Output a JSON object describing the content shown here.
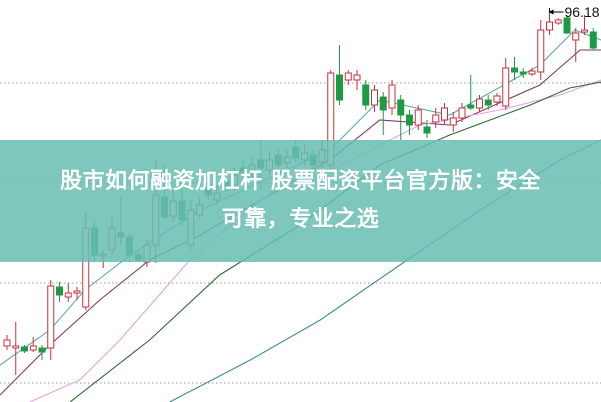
{
  "banner": {
    "title_line1": "股市如何融资加杠杆 股票配资平台官方版：安全",
    "title_line2": "可靠，专业之选"
  },
  "chart_data": {
    "type": "candlestick",
    "title": "",
    "xlabel": "",
    "ylabel": "",
    "grid": true,
    "gridlines": [
      88.68,
      78.68,
      68.68,
      58.68
    ],
    "ylim": [
      56.78,
      96.98
    ],
    "max_annotation": {
      "label": "96.18",
      "value": 96.18,
      "candle_index": 62
    },
    "colors": {
      "up": "#c8323c",
      "down": "#1f9a44",
      "grid": "#9a9a9a"
    },
    "candles": [
      [
        62.38,
        62.98,
        63.48,
        61.98
      ],
      [
        62.18,
        62.38,
        64.78,
        59.48
      ],
      [
        62.28,
        61.88,
        62.48,
        61.68
      ],
      [
        61.98,
        62.38,
        63.28,
        61.78
      ],
      [
        62.18,
        61.78,
        62.48,
        60.98
      ],
      [
        62.18,
        68.38,
        68.98,
        60.98
      ],
      [
        68.28,
        67.48,
        68.78,
        66.78
      ],
      [
        67.28,
        67.68,
        68.68,
        66.78
      ],
      [
        67.68,
        67.88,
        68.28,
        66.98
      ],
      [
        66.28,
        74.18,
        75.68,
        65.98
      ],
      [
        74.18,
        71.48,
        74.78,
        70.78
      ],
      [
        71.38,
        71.58,
        71.98,
        70.18
      ],
      [
        71.98,
        74.18,
        75.18,
        71.48
      ],
      [
        73.68,
        73.28,
        77.28,
        72.48
      ],
      [
        73.28,
        71.48,
        73.68,
        70.78
      ],
      [
        71.48,
        70.98,
        71.98,
        70.78
      ],
      [
        70.78,
        72.48,
        72.98,
        70.28
      ],
      [
        72.48,
        77.48,
        80.98,
        70.68
      ],
      [
        77.28,
        75.28,
        80.48,
        74.98
      ],
      [
        75.38,
        76.88,
        77.98,
        74.78
      ],
      [
        76.88,
        74.98,
        78.48,
        74.48
      ],
      [
        72.48,
        75.98,
        76.98,
        71.98
      ],
      [
        75.48,
        76.48,
        77.18,
        75.18
      ],
      [
        78.28,
        77.48,
        78.98,
        76.98
      ],
      [
        76.98,
        77.68,
        78.48,
        76.48
      ],
      [
        78.98,
        78.18,
        79.78,
        77.78
      ],
      [
        78.48,
        79.48,
        80.18,
        77.98
      ],
      [
        80.18,
        79.48,
        80.98,
        78.98
      ],
      [
        79.78,
        80.48,
        81.18,
        79.18
      ],
      [
        80.98,
        80.18,
        82.98,
        77.98
      ],
      [
        79.98,
        80.98,
        81.98,
        79.48
      ],
      [
        81.48,
        80.48,
        82.18,
        79.98
      ],
      [
        80.68,
        81.28,
        81.98,
        80.18
      ],
      [
        82.28,
        81.18,
        82.98,
        80.78
      ],
      [
        80.98,
        81.68,
        82.48,
        80.48
      ],
      [
        81.48,
        80.48,
        81.98,
        79.98
      ],
      [
        80.78,
        81.98,
        82.98,
        80.18
      ],
      [
        80.48,
        89.68,
        89.98,
        79.98
      ],
      [
        89.48,
        86.98,
        92.48,
        86.48
      ],
      [
        88.98,
        89.68,
        89.98,
        88.48
      ],
      [
        88.98,
        89.48,
        89.98,
        87.98
      ],
      [
        88.48,
        86.48,
        88.98,
        85.98
      ],
      [
        86.48,
        87.98,
        88.48,
        85.78
      ],
      [
        87.28,
        85.98,
        87.78,
        83.48
      ],
      [
        86.18,
        88.48,
        88.98,
        85.48
      ],
      [
        86.98,
        85.48,
        87.48,
        82.98
      ],
      [
        85.48,
        84.48,
        85.98,
        83.48
      ],
      [
        84.48,
        85.98,
        86.48,
        83.98
      ],
      [
        84.28,
        83.68,
        84.98,
        83.18
      ],
      [
        84.78,
        85.48,
        86.18,
        84.18
      ],
      [
        84.98,
        86.18,
        86.68,
        84.48
      ],
      [
        84.48,
        85.18,
        85.78,
        83.78
      ],
      [
        85.18,
        86.18,
        86.68,
        84.78
      ],
      [
        86.48,
        86.18,
        89.48,
        85.98
      ],
      [
        86.18,
        87.08,
        87.48,
        85.78
      ],
      [
        86.98,
        86.48,
        87.48,
        85.98
      ],
      [
        86.78,
        87.38,
        87.68,
        86.38
      ],
      [
        86.38,
        90.18,
        91.18,
        85.98
      ],
      [
        90.18,
        89.78,
        91.28,
        88.98
      ],
      [
        89.78,
        89.58,
        90.18,
        89.18
      ],
      [
        89.58,
        89.88,
        90.18,
        89.38
      ],
      [
        89.78,
        93.98,
        94.98,
        88.98
      ],
      [
        93.98,
        94.78,
        96.18,
        93.48
      ],
      [
        94.68,
        94.98,
        95.18,
        94.48
      ],
      [
        95.18,
        93.68,
        95.38,
        93.58
      ],
      [
        92.98,
        93.68,
        94.18,
        90.78
      ],
      [
        93.78,
        93.98,
        95.48,
        93.48
      ],
      [
        93.78,
        92.18,
        94.18,
        91.98
      ]
    ],
    "candle_fields": [
      "open",
      "close",
      "high",
      "low"
    ],
    "moving_averages": [
      {
        "color": "#5fa8b4",
        "points": [
          [
            -0.8,
            60.48
          ],
          [
            4.9,
            63.98
          ],
          [
            8.9,
            67.98
          ],
          [
            14.1,
            71.48
          ],
          [
            22.1,
            75.98
          ],
          [
            36.9,
            81.98
          ],
          [
            42.6,
            86.98
          ],
          [
            50.6,
            85.48
          ],
          [
            60.9,
            90.48
          ],
          [
            64.9,
            93.98
          ],
          [
            67.9,
            92.98
          ]
        ]
      },
      {
        "color": "#7e3a6e",
        "points": [
          [
            -0.8,
            57.48
          ],
          [
            4.9,
            62.48
          ],
          [
            10.6,
            66.98
          ],
          [
            16.3,
            70.98
          ],
          [
            22.1,
            73.48
          ],
          [
            36.9,
            80.98
          ],
          [
            42.6,
            84.98
          ],
          [
            50.6,
            84.48
          ],
          [
            60.9,
            88.48
          ],
          [
            65.5,
            91.98
          ],
          [
            67.9,
            91.98
          ]
        ]
      },
      {
        "color": "#e4a2e6",
        "points": [
          [
            2.6,
            56.78
          ],
          [
            8.3,
            58.98
          ],
          [
            12.9,
            62.98
          ],
          [
            20.9,
            70.98
          ],
          [
            28.9,
            76.98
          ],
          [
            36.9,
            79.98
          ],
          [
            47.2,
            84.48
          ],
          [
            56.3,
            85.98
          ],
          [
            63.2,
            87.48
          ],
          [
            67.9,
            88.98
          ]
        ]
      },
      {
        "color": "#2f6a34",
        "points": [
          [
            7.2,
            56.78
          ],
          [
            16.3,
            62.98
          ],
          [
            24.3,
            69.48
          ],
          [
            33.5,
            74.48
          ],
          [
            42.6,
            80.48
          ],
          [
            50.6,
            83.48
          ],
          [
            59.8,
            86.48
          ],
          [
            64.3,
            88.18
          ],
          [
            67.9,
            88.78
          ]
        ]
      },
      {
        "color": "#3d8c9a",
        "points": [
          [
            18.6,
            56.78
          ],
          [
            27.8,
            60.98
          ],
          [
            35.8,
            64.98
          ],
          [
            44.9,
            70.48
          ],
          [
            54.1,
            75.98
          ],
          [
            63.2,
            80.98
          ],
          [
            67.9,
            82.98
          ]
        ]
      }
    ]
  }
}
